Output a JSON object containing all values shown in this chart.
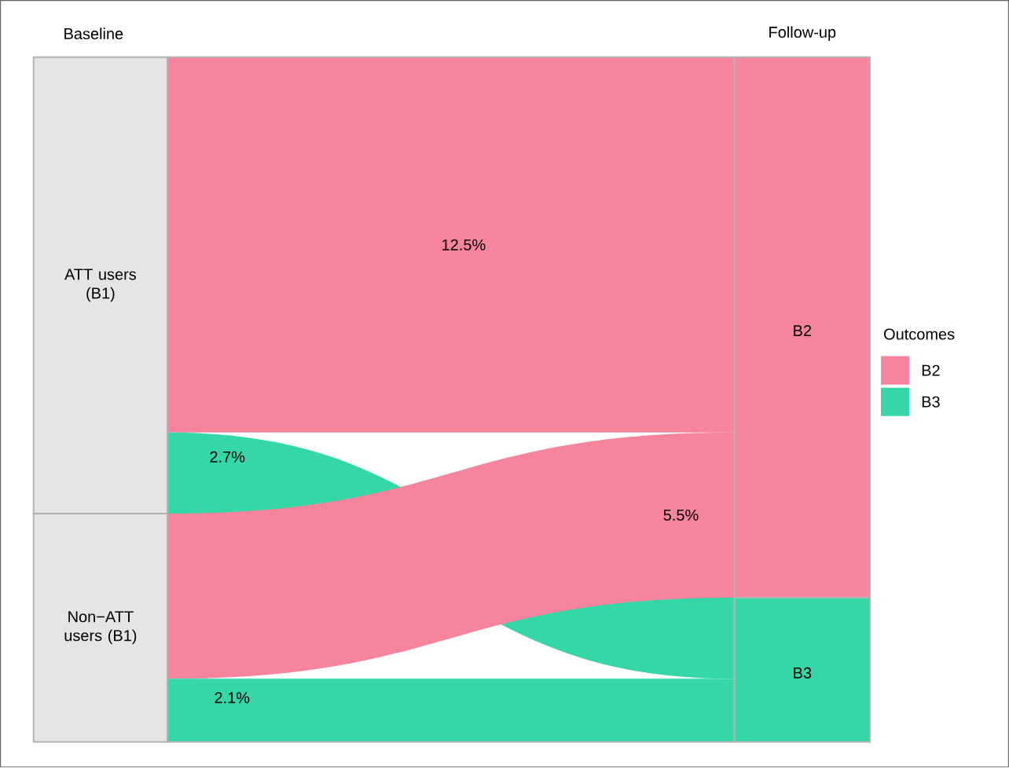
{
  "chart_data": {
    "type": "other",
    "categories": [
      "ATT users (B1)",
      "Non−ATT users (B1)"
    ],
    "legend_title": "Outcomes",
    "legend": "right",
    "series": [
      {
        "name": "B2",
        "color": "#f7849d",
        "values": [
          12.5,
          5.5
        ],
        "value_labels": [
          "12.5%",
          "5.5%"
        ]
      },
      {
        "name": "B3",
        "color": "#35d7a8",
        "values": [
          2.7,
          2.1
        ],
        "value_labels": [
          "2.7%",
          "2.1%"
        ]
      }
    ],
    "annotations": [
      "Baseline",
      "Follow-up"
    ]
  }
}
